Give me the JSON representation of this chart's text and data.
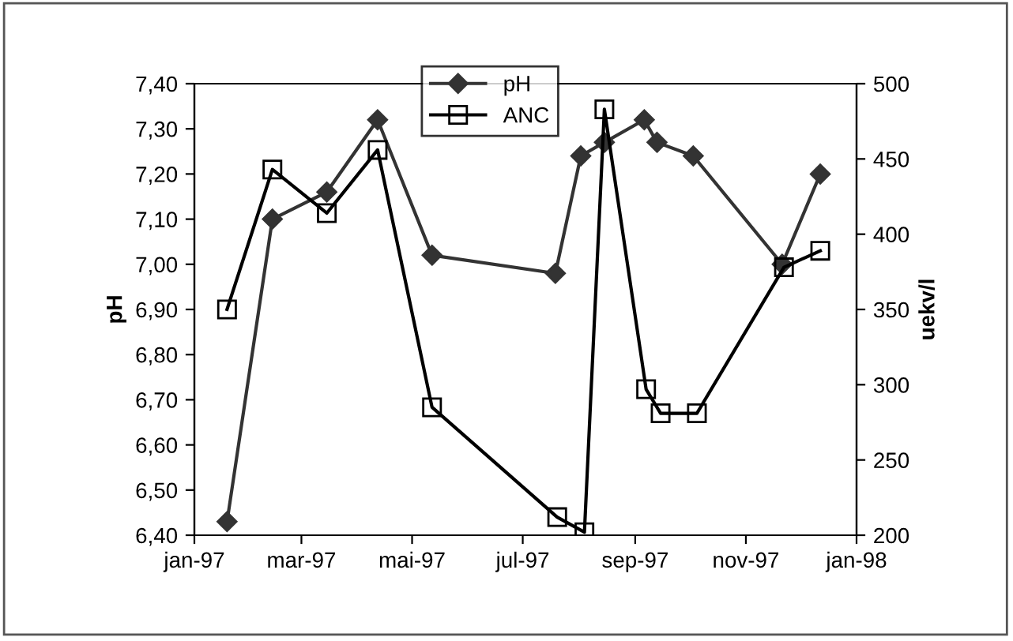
{
  "chart_data": {
    "type": "line",
    "ylabel": "pH",
    "y2label": "uekv/l",
    "xlim": [
      "1997-01-01",
      "1998-01-01"
    ],
    "xticks": [
      {
        "value": "1997-01-01",
        "label": "jan-97"
      },
      {
        "value": "1997-03-01",
        "label": "mar-97"
      },
      {
        "value": "1997-05-01",
        "label": "mai-97"
      },
      {
        "value": "1997-07-01",
        "label": "jul-97"
      },
      {
        "value": "1997-09-01",
        "label": "sep-97"
      },
      {
        "value": "1997-11-01",
        "label": "nov-97"
      },
      {
        "value": "1998-01-01",
        "label": "jan-98"
      }
    ],
    "ylim": [
      6.4,
      7.4
    ],
    "yticks": [
      {
        "value": 6.4,
        "label": "6,40"
      },
      {
        "value": 6.5,
        "label": "6,50"
      },
      {
        "value": 6.6,
        "label": "6,60"
      },
      {
        "value": 6.7,
        "label": "6,70"
      },
      {
        "value": 6.8,
        "label": "6,80"
      },
      {
        "value": 6.9,
        "label": "6,90"
      },
      {
        "value": 7.0,
        "label": "7,00"
      },
      {
        "value": 7.1,
        "label": "7,10"
      },
      {
        "value": 7.2,
        "label": "7,20"
      },
      {
        "value": 7.3,
        "label": "7,30"
      },
      {
        "value": 7.4,
        "label": "7,40"
      }
    ],
    "y2lim": [
      200,
      500
    ],
    "y2ticks": [
      200,
      250,
      300,
      350,
      400,
      450,
      500
    ],
    "grid": false,
    "legend": "top",
    "line_style": "solid",
    "series": [
      {
        "name": "pH",
        "color": "#333333",
        "marker": "diamond",
        "x": [
          "1997-01-19",
          "1997-02-13",
          "1997-03-15",
          "1997-04-12",
          "1997-05-12",
          "1997-07-19",
          "1997-08-02",
          "1997-08-15",
          "1997-09-06",
          "1997-09-13",
          "1997-10-03",
          "1997-11-21",
          "1997-12-12"
        ],
        "values": [
          6.43,
          7.1,
          7.16,
          7.32,
          7.02,
          6.98,
          7.24,
          7.27,
          7.32,
          7.27,
          7.24,
          7.0,
          7.2
        ]
      },
      {
        "name": "ANC",
        "color": "#000000",
        "marker": "square",
        "axis": "y2",
        "x": [
          "1997-01-19",
          "1997-02-13",
          "1997-03-15",
          "1997-04-12",
          "1997-05-12",
          "1997-07-20",
          "1997-08-04",
          "1997-08-15",
          "1997-09-07",
          "1997-09-15",
          "1997-10-05",
          "1997-11-22",
          "1997-12-12"
        ],
        "values": [
          350,
          443,
          414,
          456,
          285,
          212,
          202,
          483,
          297,
          281,
          281,
          378,
          389
        ]
      }
    ]
  }
}
